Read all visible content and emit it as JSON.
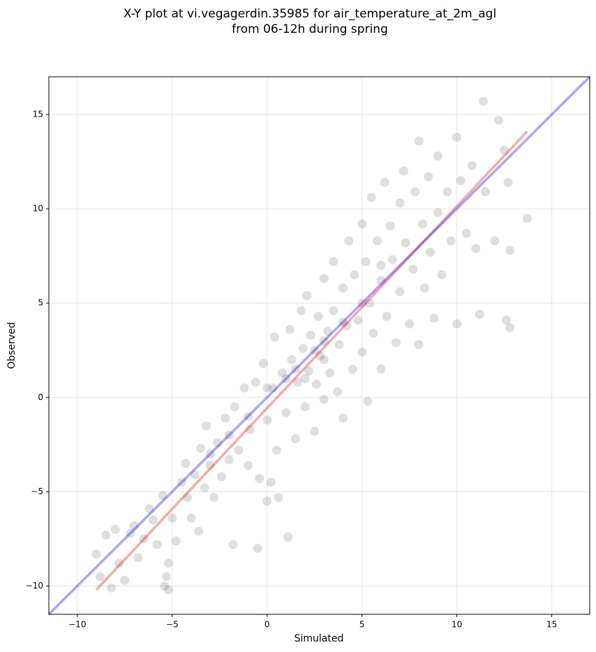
{
  "chart_data": {
    "type": "scatter",
    "title": [
      "X-Y plot at vi.vegagerdin.35985 for air_temperature_at_2m_agl",
      "from 06-12h during spring"
    ],
    "xlabel": "Simulated",
    "ylabel": "Observed",
    "xlim": [
      -11.5,
      17
    ],
    "ylim": [
      -11.5,
      17
    ],
    "xticks": [
      {
        "value": -10,
        "label": "−10"
      },
      {
        "value": -5,
        "label": "−5"
      },
      0,
      5,
      10,
      15
    ],
    "yticks": [
      {
        "value": -10,
        "label": "−10"
      },
      {
        "value": -5,
        "label": "−5"
      },
      0,
      5,
      10,
      15
    ],
    "grid": true,
    "series": [
      {
        "type": "scatter",
        "color": "#000000",
        "x": [
          -9,
          -8.8,
          -8.5,
          -8.2,
          -8,
          -7.8,
          -7.5,
          -7.2,
          -7,
          -6.8,
          -6.5,
          -6.2,
          -6,
          -5.8,
          -5.5,
          -5.4,
          -5.3,
          -5.2,
          -5.2,
          -5,
          -4.8,
          -4.5,
          -4.3,
          -4.2,
          -4,
          -3.8,
          -3.6,
          -3.5,
          -3.3,
          -3.2,
          -3,
          -2.8,
          -2.6,
          -2.4,
          -2.2,
          -2,
          -1.8,
          -1.7,
          -1.5,
          -1.2,
          -1,
          -0.9,
          -0.6,
          -0.5,
          -0.4,
          -0.2,
          0,
          0,
          0.2,
          0.3,
          0.4,
          0.5,
          0.6,
          0.8,
          1,
          1.1,
          1.2,
          1.3,
          1.5,
          1.6,
          1.8,
          1.9,
          2,
          2.1,
          2.2,
          2.3,
          2.5,
          2.6,
          2.7,
          2.8,
          3,
          3,
          3.2,
          3.3,
          3.5,
          3.5,
          3.7,
          3.8,
          4,
          4,
          4.2,
          4.3,
          4.5,
          4.6,
          4.8,
          5,
          5,
          5.2,
          5.3,
          5.4,
          5.5,
          5.6,
          5.8,
          6,
          6,
          6.2,
          6.3,
          6.5,
          6.6,
          6.8,
          7,
          7,
          7.2,
          7.3,
          7.5,
          7.7,
          7.8,
          8,
          8,
          8.2,
          8.3,
          8.5,
          8.6,
          8.8,
          9,
          9,
          9.2,
          9.5,
          9.7,
          10,
          10,
          10.2,
          10.5,
          10.8,
          11,
          11.2,
          11.4,
          11.5,
          12,
          12.2,
          12.5,
          12.6,
          12.7,
          12.8,
          12.8,
          13.7,
          1.5,
          2.5,
          3,
          2,
          3,
          4,
          5,
          6,
          1,
          0,
          -1,
          -2,
          -3
        ],
        "y": [
          -8.3,
          -9.5,
          -7.3,
          -10.1,
          -7,
          -8.8,
          -9.7,
          -7.2,
          -6.8,
          -8.5,
          -7.5,
          -5.9,
          -6.5,
          -7.8,
          -5.2,
          -10,
          -9.5,
          -8.8,
          -10.2,
          -6.4,
          -7.6,
          -4.5,
          -3.5,
          -5.3,
          -6.4,
          -4.1,
          -7.1,
          -2.7,
          -4.8,
          -1.5,
          -3.6,
          -5.3,
          -2.4,
          -4.2,
          -1.1,
          -3.3,
          -7.8,
          -0.5,
          -2.8,
          0.5,
          -3.6,
          -1.7,
          0.8,
          -8,
          -4.3,
          1.8,
          -1.2,
          -5.5,
          -4.5,
          0.5,
          3.2,
          -2.8,
          -5.3,
          1.3,
          -0.8,
          -7.4,
          3.6,
          2,
          -2.2,
          0.8,
          4.6,
          2.6,
          -0.5,
          5.4,
          1.4,
          3.3,
          -1.8,
          0.7,
          4.3,
          2.2,
          6.3,
          -0.1,
          3.5,
          1.3,
          7.2,
          4.6,
          0.3,
          2.8,
          5.8,
          -1.1,
          3.8,
          8.3,
          1.5,
          6.5,
          4.1,
          9.2,
          2.4,
          7.2,
          -0.2,
          5,
          10.6,
          3.4,
          8.3,
          6.2,
          1.5,
          11.4,
          4.3,
          9.1,
          7.3,
          2.9,
          10.3,
          5.6,
          12,
          8.2,
          3.9,
          6.8,
          10.9,
          2.8,
          13.6,
          9.2,
          5.8,
          11.7,
          7.7,
          4.2,
          12.8,
          9.8,
          6.5,
          10.9,
          8.3,
          13.8,
          3.9,
          11.5,
          8.7,
          12.3,
          7.9,
          4.4,
          15.7,
          10.9,
          8.3,
          14.7,
          13.1,
          4.1,
          11.4,
          3.7,
          7.8,
          9.5,
          1.5,
          2.5,
          3,
          1,
          2,
          4,
          5,
          7,
          1,
          0.5,
          -1,
          -2,
          -3
        ]
      },
      {
        "type": "line",
        "color": "#ff0000",
        "x": [
          -9,
          13.7
        ],
        "y": [
          -10.2,
          14.1
        ]
      },
      {
        "type": "line",
        "color": "#0000ff",
        "x": [
          -11.5,
          17
        ],
        "y": [
          -11.5,
          17
        ]
      }
    ]
  }
}
